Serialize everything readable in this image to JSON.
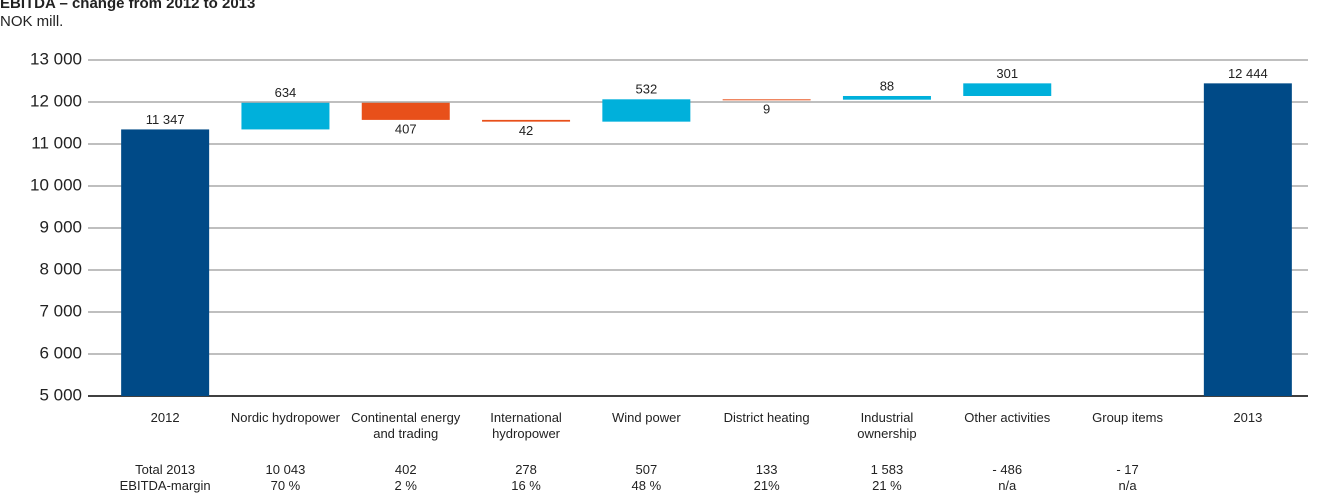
{
  "chart_data": {
    "type": "waterfall",
    "title": "EBITDA – change from 2012 to 2013",
    "subtitle": "NOK mill.",
    "categories": [
      "2012",
      "Nordic hydropower",
      "Continental energy and trading",
      "International hydropower",
      "Wind power",
      "District heating",
      "Industrial ownership",
      "Other activities",
      "Group items",
      "2013"
    ],
    "measure": [
      "total",
      "relative",
      "relative",
      "relative",
      "relative",
      "relative",
      "relative",
      "relative",
      "relative",
      "total"
    ],
    "values": [
      11347,
      634,
      -407,
      -42,
      532,
      -9,
      88,
      301,
      null,
      12444
    ],
    "value_labels": [
      "11 347",
      "634",
      "407",
      "42",
      "532",
      "9",
      "88",
      "301",
      null,
      "12 444"
    ],
    "colors": {
      "total": "#004a87",
      "increase": "#00b0db",
      "decrease": "#e8501a"
    },
    "ylim": [
      5000,
      13000
    ],
    "yticks": [
      {
        "value": 5000,
        "label": "5 000"
      },
      {
        "value": 6000,
        "label": "6 000"
      },
      {
        "value": 7000,
        "label": "7 000"
      },
      {
        "value": 8000,
        "label": "8 000"
      },
      {
        "value": 9000,
        "label": "9 000"
      },
      {
        "value": 10000,
        "label": "10 000"
      },
      {
        "value": 11000,
        "label": "11 000"
      },
      {
        "value": 12000,
        "label": "12 000"
      },
      {
        "value": 13000,
        "label": "13 000"
      }
    ],
    "grid": true
  },
  "table": {
    "rows": [
      {
        "label": "Total 2013",
        "values": [
          "10 043",
          "402",
          "278",
          "507",
          "133",
          "1 583",
          "- 486",
          "- 17"
        ]
      },
      {
        "label": "EBITDA-margin",
        "values": [
          "70 %",
          "2 %",
          "16 %",
          "48 %",
          "21%",
          "21 %",
          "n/a",
          "n/a"
        ]
      }
    ]
  }
}
